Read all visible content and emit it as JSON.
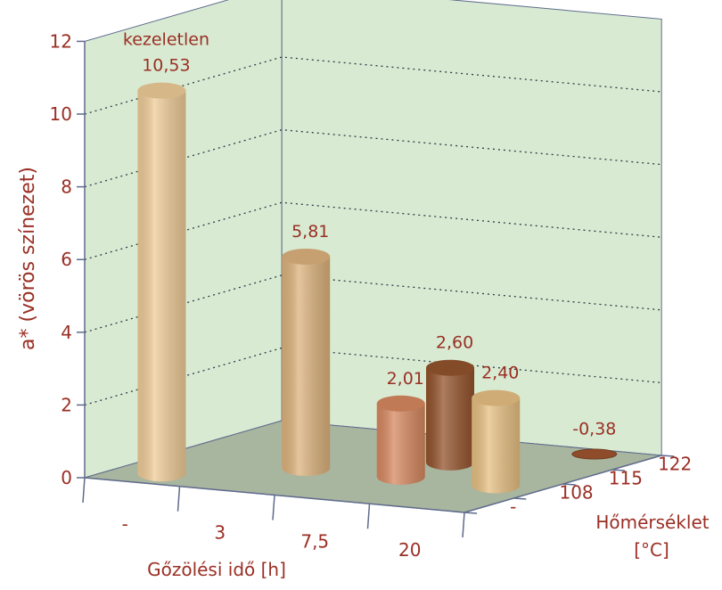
{
  "chart_data": {
    "type": "bar",
    "style": "3d-cylinder",
    "xlabel": "Gőzölési idő [h]",
    "zlabel_line1": "Hőmérséklet",
    "zlabel_line2": "[°C]",
    "ylabel": "a* (vörös színezet)",
    "ylim": [
      0,
      12
    ],
    "yticks": [
      "0",
      "2",
      "4",
      "6",
      "8",
      "10",
      "12"
    ],
    "x_categories": [
      "-",
      "3",
      "7,5",
      "20"
    ],
    "z_categories": [
      "-",
      "108",
      "115",
      "122"
    ],
    "grid": true,
    "bars": [
      {
        "time": "-",
        "temperature": "-",
        "value": 10.53,
        "label": "10,53",
        "note": "kezeletlen",
        "color": "#eecb97"
      },
      {
        "time": "3",
        "temperature": "108",
        "value": 5.81,
        "label": "5,81",
        "color": "#dcb27c"
      },
      {
        "time": "7,5",
        "temperature": "115",
        "value": 2.6,
        "label": "2,60",
        "color": "#93532c"
      },
      {
        "time": "7,5",
        "temperature": "108",
        "value": 2.01,
        "label": "2,01",
        "color": "#d68860"
      },
      {
        "time": "20",
        "temperature": "108",
        "value": 2.4,
        "label": "2,40",
        "color": "#e6bf82"
      },
      {
        "time": "20",
        "temperature": "122",
        "value": -0.38,
        "label": "-0,38",
        "color": "#8f4c2a"
      }
    ],
    "colors": {
      "walls": "#d8ebd2",
      "floor": "#a8b59f",
      "text": "#9a2f25",
      "axis": "#5f6b8c"
    }
  }
}
